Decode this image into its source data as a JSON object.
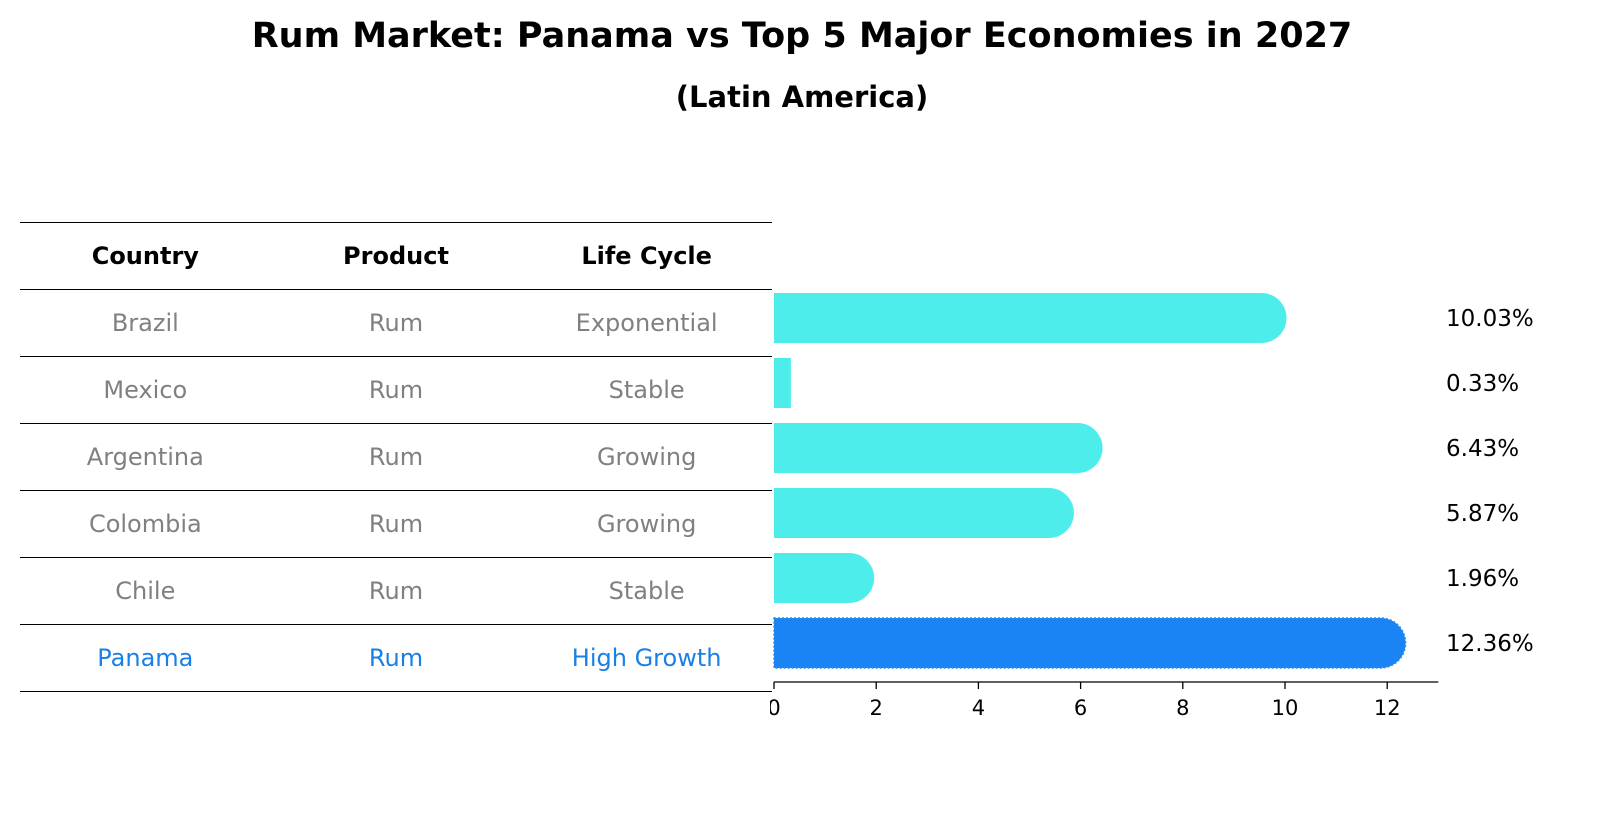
{
  "title": "Rum Market: Panama vs Top 5 Major Economies in 2027",
  "subtitle": "(Latin America)",
  "table": {
    "headers": [
      "Country",
      "Product",
      "Life Cycle"
    ],
    "rows": [
      [
        "Brazil",
        "Rum",
        "Exponential"
      ],
      [
        "Mexico",
        "Rum",
        "Stable"
      ],
      [
        "Argentina",
        "Rum",
        "Growing"
      ],
      [
        "Colombia",
        "Rum",
        "Growing"
      ],
      [
        "Chile",
        "Rum",
        "Stable"
      ],
      [
        "Panama",
        "Rum",
        "High Growth"
      ]
    ]
  },
  "colors": {
    "bar": "#4dedeb",
    "highlight": "#1a84f5",
    "muted_text": "#808080",
    "highlight_text": "#1a7fe6"
  },
  "chart_data": {
    "type": "bar",
    "orientation": "horizontal",
    "categories": [
      "Brazil",
      "Mexico",
      "Argentina",
      "Colombia",
      "Chile",
      "Panama"
    ],
    "values": [
      10.03,
      0.33,
      6.43,
      5.87,
      1.96,
      12.36
    ],
    "value_labels": [
      "10.03%",
      "0.33%",
      "6.43%",
      "5.87%",
      "1.96%",
      "12.36%"
    ],
    "highlight": "Panama",
    "xlim": [
      0,
      13
    ],
    "xticks": [
      0,
      2,
      4,
      6,
      8,
      10,
      12
    ],
    "xlabel": "",
    "ylabel": "",
    "grid": false
  }
}
